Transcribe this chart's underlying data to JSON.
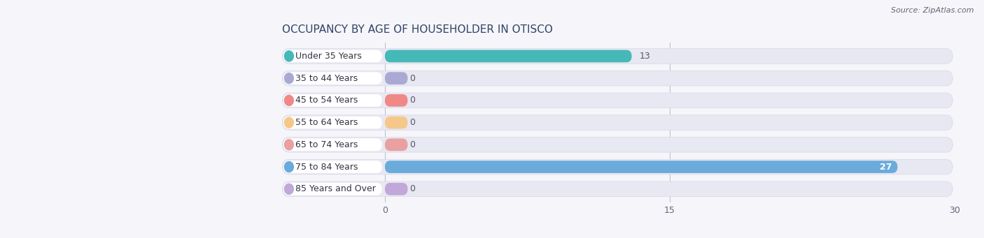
{
  "title": "OCCUPANCY BY AGE OF HOUSEHOLDER IN OTISCO",
  "source": "Source: ZipAtlas.com",
  "categories": [
    "Under 35 Years",
    "35 to 44 Years",
    "45 to 54 Years",
    "55 to 64 Years",
    "65 to 74 Years",
    "75 to 84 Years",
    "85 Years and Over"
  ],
  "values": [
    13,
    0,
    0,
    0,
    0,
    27,
    0
  ],
  "bar_colors": [
    "#45b8b8",
    "#a9a9d4",
    "#f08888",
    "#f5c88a",
    "#e8a0a0",
    "#6aabdb",
    "#c0a8d8"
  ],
  "xlim_data": [
    0,
    30
  ],
  "xticks": [
    0,
    15,
    30
  ],
  "bg_color": "#f5f5fa",
  "bar_bg_color": "#e8e8f2",
  "label_bg_color": "#ffffff",
  "title_fontsize": 11,
  "label_fontsize": 9,
  "value_fontsize": 9,
  "source_fontsize": 8
}
